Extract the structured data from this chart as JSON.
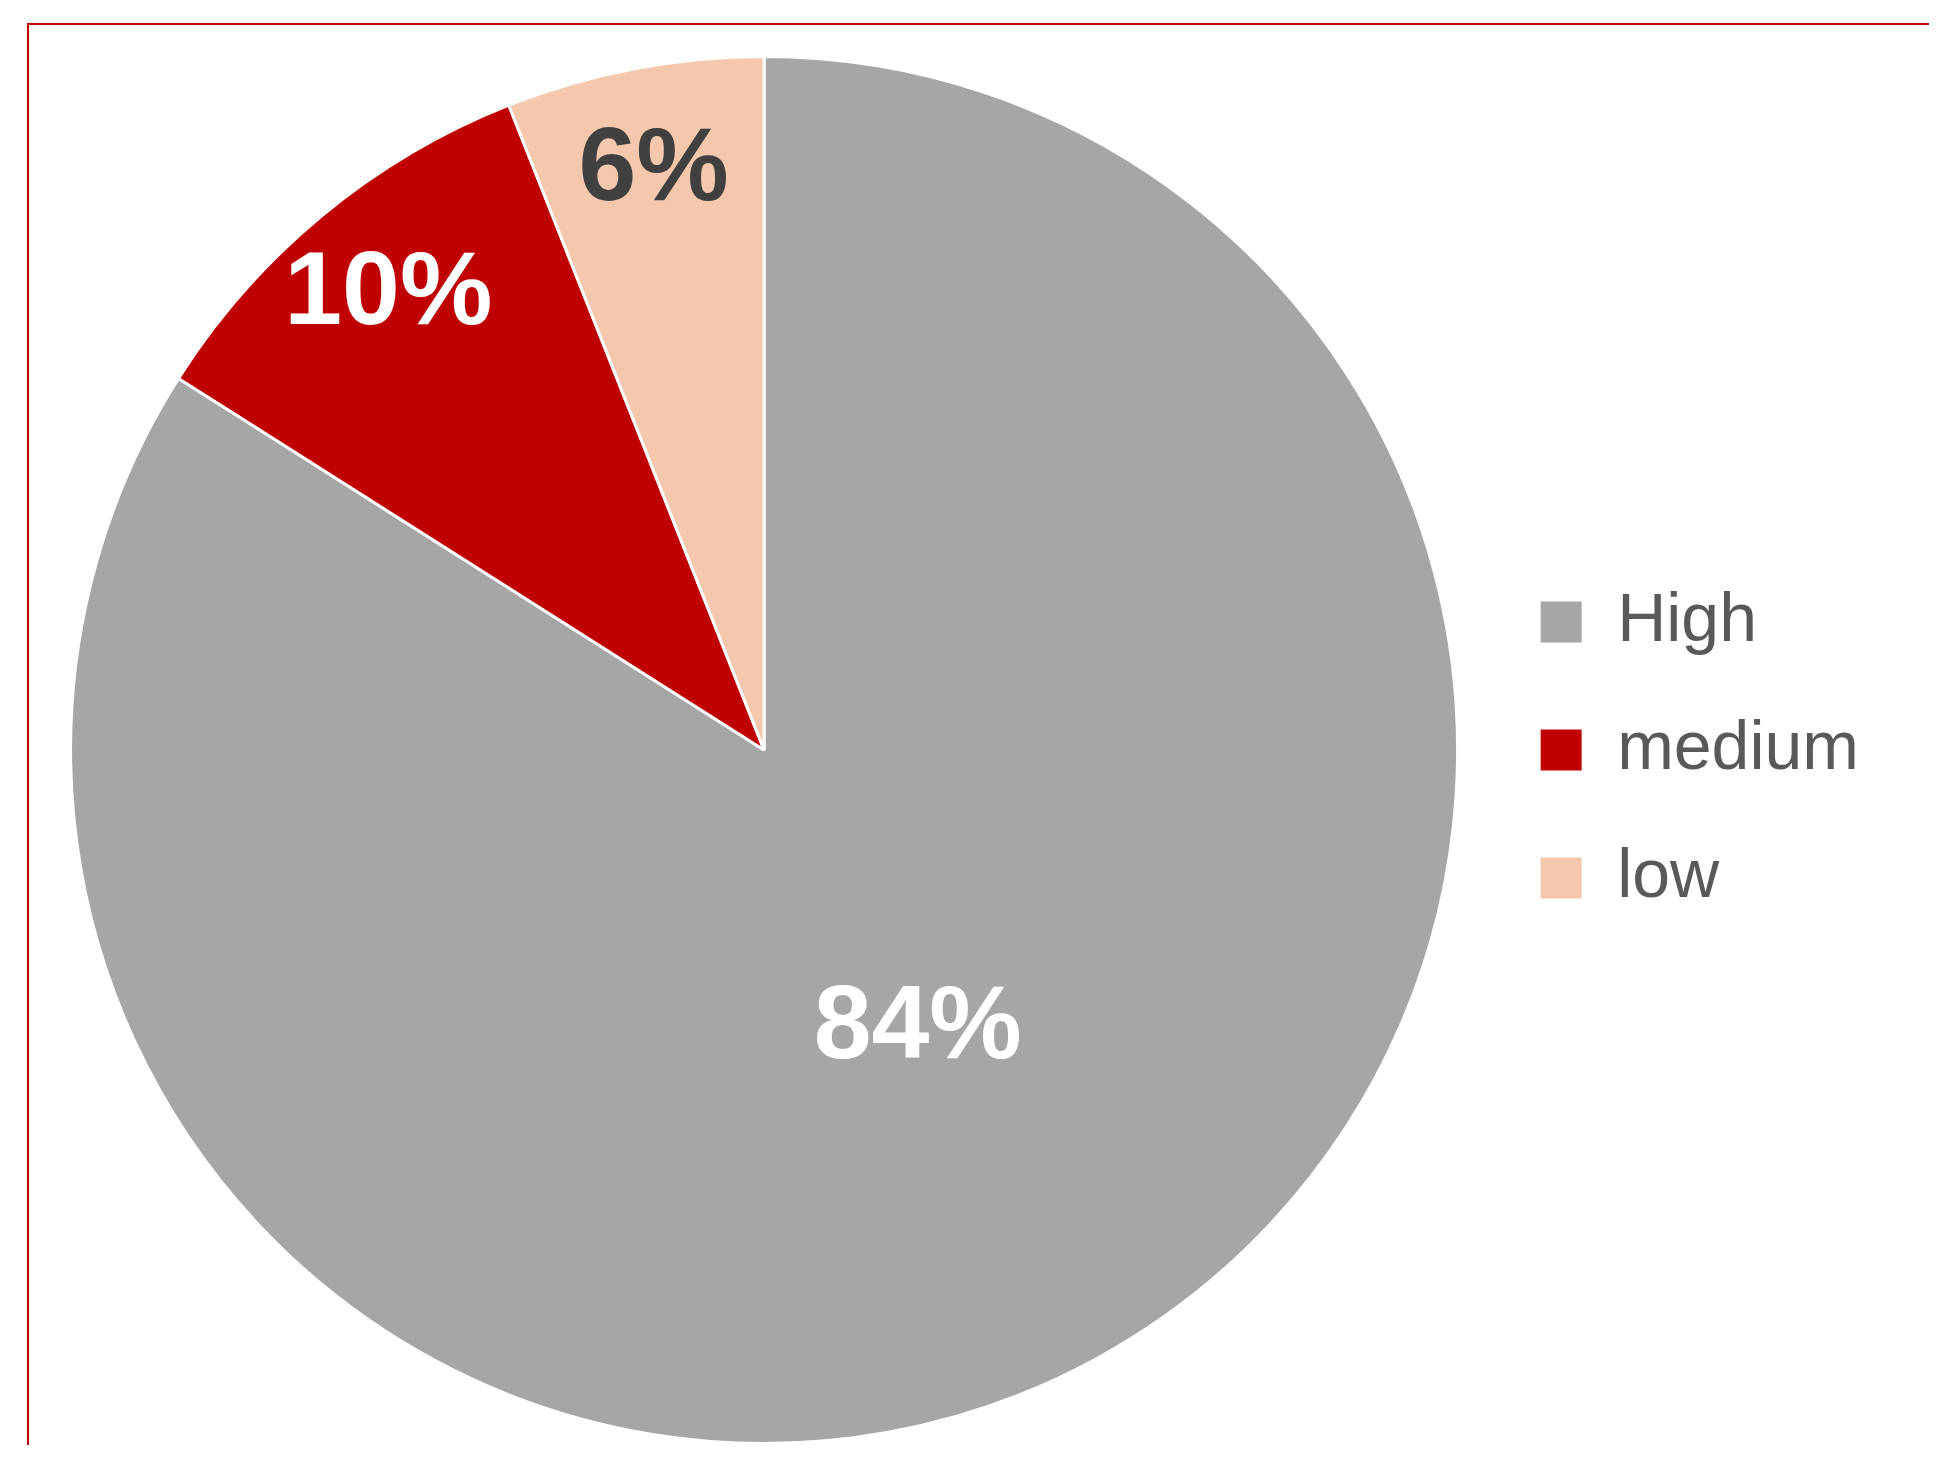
{
  "chart_data": {
    "type": "pie",
    "categories": [
      "High",
      "medium",
      "low"
    ],
    "values": [
      84,
      10,
      6
    ],
    "value_labels": [
      "84%",
      "10%",
      "6%"
    ],
    "colors": [
      "#a6a6a6",
      "#c00000",
      "#f5c7ad"
    ],
    "legend": "right"
  }
}
